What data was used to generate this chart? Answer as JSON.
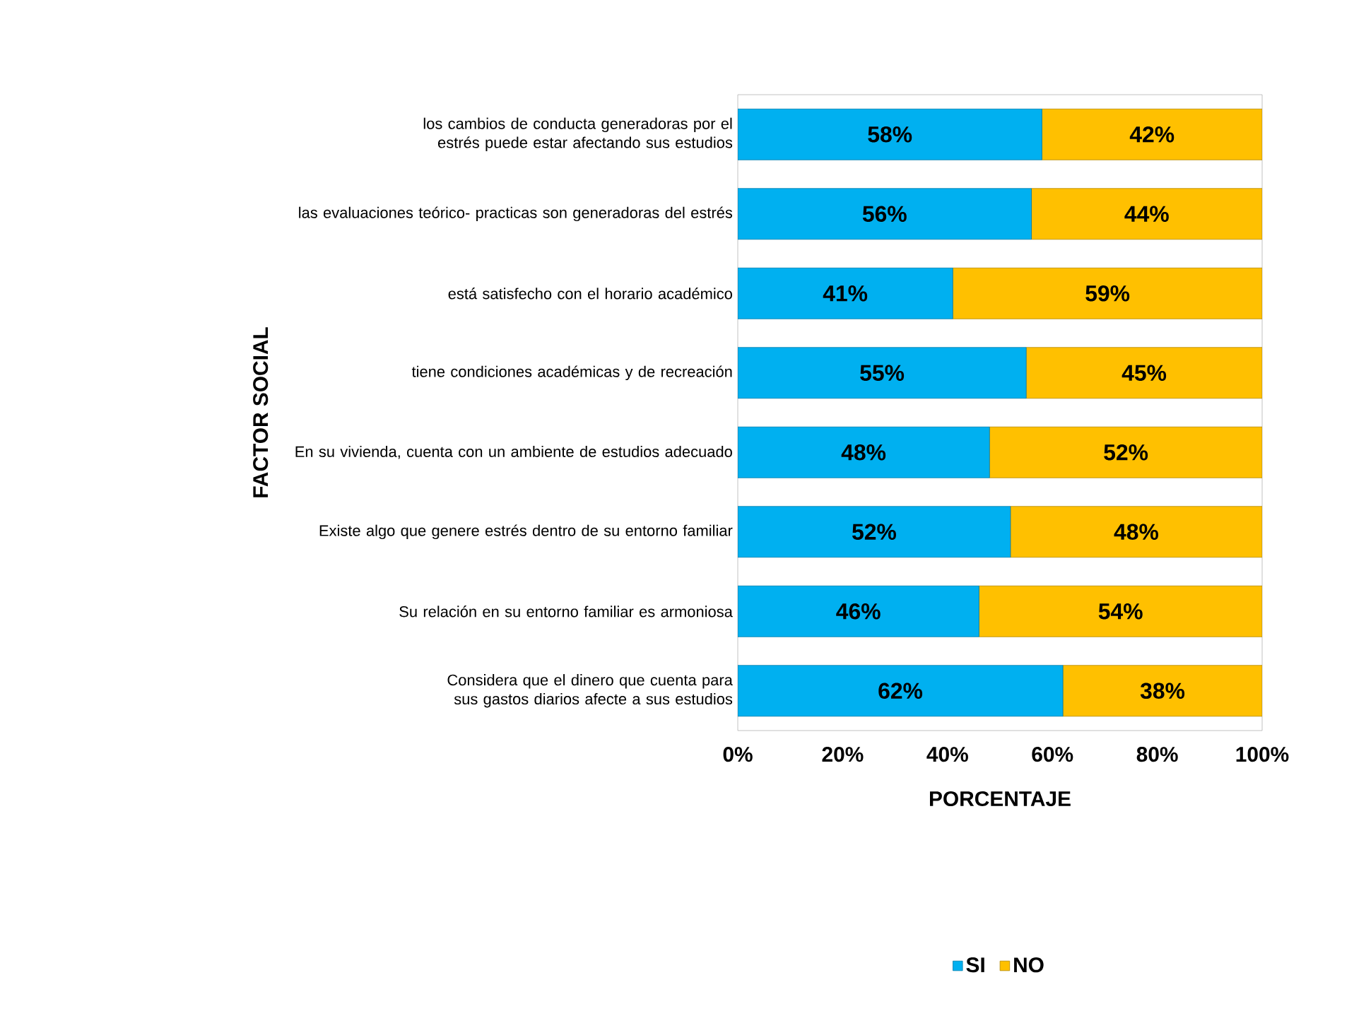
{
  "chart_data": {
    "type": "bar",
    "orientation": "horizontal",
    "stacked": true,
    "xlabel": "PORCENTAJE",
    "ylabel": "FACTOR SOCIAL",
    "categories": [
      "los cambios de conducta generadoras por el estrés puede estar afectando sus estudios",
      "las evaluaciones teórico- practicas son generadoras del estrés",
      "está satisfecho con el horario académico",
      "tiene condiciones académicas y de recreación",
      "En su vivienda, cuenta con un ambiente de estudios adecuado",
      "Existe algo que genere estrés dentro de su entorno familiar",
      "Su relación en su entorno familiar es armoniosa",
      "Considera que el dinero que cuenta para sus gastos diarios afecte a sus estudios"
    ],
    "series": [
      {
        "name": "SI",
        "color": "#00b0f0",
        "values": [
          58,
          56,
          41,
          55,
          48,
          52,
          46,
          62
        ],
        "value_labels": [
          "58%",
          "56%",
          "41%",
          "55%",
          "48%",
          "52%",
          "46%",
          "62%"
        ]
      },
      {
        "name": "NO",
        "color": "#ffc000",
        "values": [
          42,
          44,
          59,
          45,
          52,
          48,
          54,
          38
        ],
        "value_labels": [
          "42%",
          "44%",
          "59%",
          "45%",
          "52%",
          "48%",
          "54%",
          "38%"
        ]
      }
    ],
    "xlim": [
      0,
      100
    ],
    "xticks": [
      {
        "value": 0,
        "label": "0%"
      },
      {
        "value": 20,
        "label": "20%"
      },
      {
        "value": 40,
        "label": "40%"
      },
      {
        "value": 60,
        "label": "60%"
      },
      {
        "value": 80,
        "label": "80%"
      },
      {
        "value": 100,
        "label": "100%"
      }
    ],
    "legend": "bottom"
  }
}
